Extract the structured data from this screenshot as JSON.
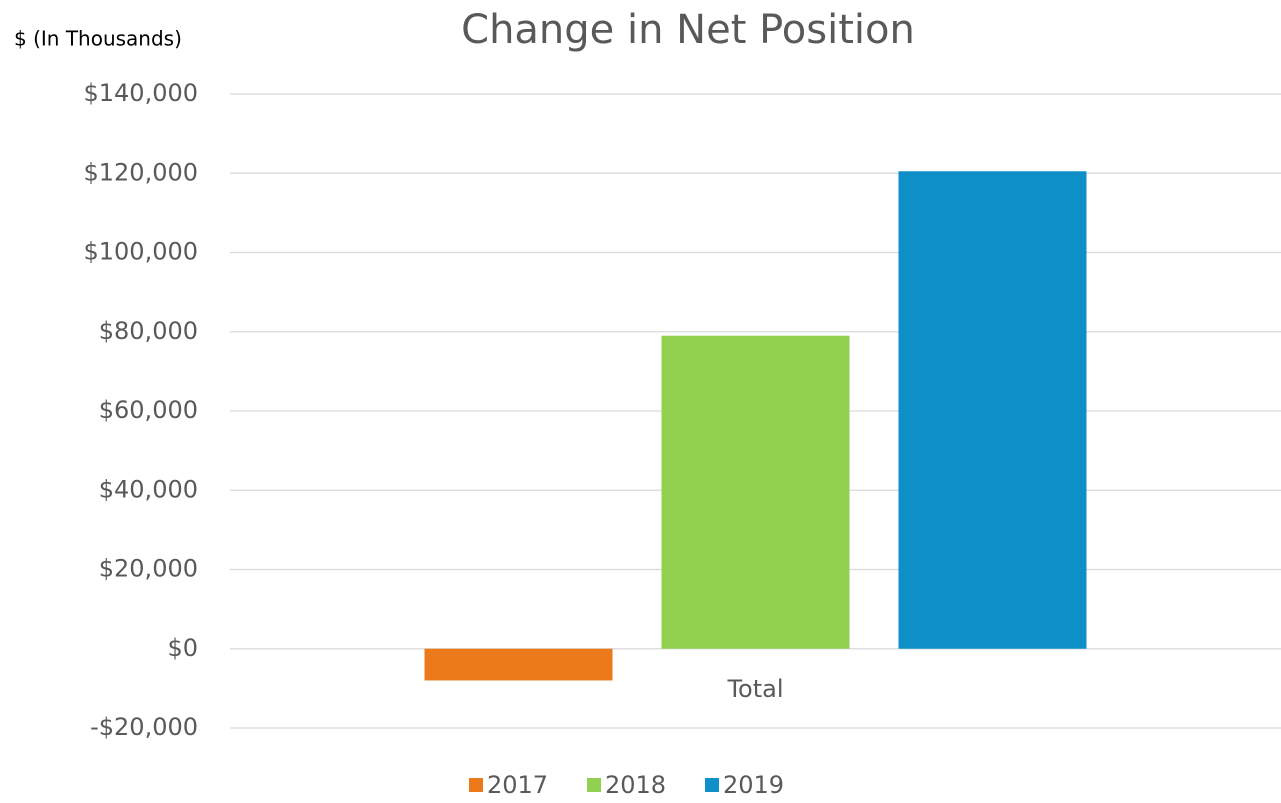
{
  "chart_data": {
    "type": "bar",
    "title": "Change in Net Position",
    "y_label": "$ (In Thousands)",
    "categories": [
      "Total"
    ],
    "series": [
      {
        "name": "2017",
        "color": "#ec7a1b",
        "values": [
          -8000
        ]
      },
      {
        "name": "2018",
        "color": "#92d04f",
        "values": [
          79000
        ]
      },
      {
        "name": "2019",
        "color": "#0e8fc8",
        "values": [
          120500
        ]
      }
    ],
    "ylim": [
      -20000,
      140000
    ],
    "yticks": [
      {
        "value": -20000,
        "label": "-$20,000"
      },
      {
        "value": 0,
        "label": "$0"
      },
      {
        "value": 20000,
        "label": "$20,000"
      },
      {
        "value": 40000,
        "label": "$40,000"
      },
      {
        "value": 60000,
        "label": "$60,000"
      },
      {
        "value": 80000,
        "label": "$80,000"
      },
      {
        "value": 100000,
        "label": "$100,000"
      },
      {
        "value": 120000,
        "label": "$120,000"
      },
      {
        "value": 140000,
        "label": "$140,000"
      }
    ],
    "grid": true,
    "legend": "bottom"
  }
}
